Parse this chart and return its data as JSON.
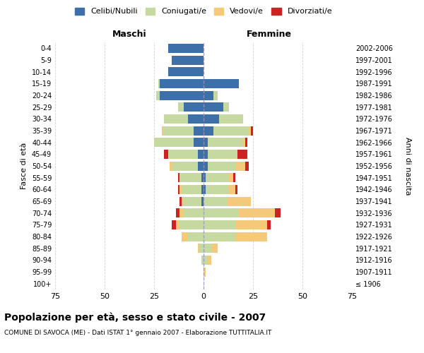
{
  "age_groups": [
    "100+",
    "95-99",
    "90-94",
    "85-89",
    "80-84",
    "75-79",
    "70-74",
    "65-69",
    "60-64",
    "55-59",
    "50-54",
    "45-49",
    "40-44",
    "35-39",
    "30-34",
    "25-29",
    "20-24",
    "15-19",
    "10-14",
    "5-9",
    "0-4"
  ],
  "birth_years": [
    "≤ 1906",
    "1907-1911",
    "1912-1916",
    "1917-1921",
    "1922-1926",
    "1927-1931",
    "1932-1936",
    "1937-1941",
    "1942-1946",
    "1947-1951",
    "1952-1956",
    "1957-1961",
    "1962-1966",
    "1967-1971",
    "1972-1976",
    "1977-1981",
    "1982-1986",
    "1987-1991",
    "1992-1996",
    "1997-2001",
    "2002-2006"
  ],
  "colors": {
    "celibi": "#3d6fa8",
    "coniugati": "#c5d9a0",
    "vedovi": "#f5c97a",
    "divorziati": "#cc2222"
  },
  "maschi": {
    "celibi": [
      0,
      0,
      0,
      0,
      0,
      0,
      0,
      1,
      1,
      1,
      3,
      3,
      5,
      5,
      8,
      10,
      22,
      22,
      18,
      16,
      18
    ],
    "coniugati": [
      0,
      0,
      1,
      2,
      8,
      12,
      10,
      9,
      10,
      11,
      13,
      15,
      20,
      15,
      12,
      3,
      2,
      1,
      0,
      0,
      0
    ],
    "vedovi": [
      0,
      0,
      0,
      1,
      3,
      2,
      2,
      1,
      1,
      0,
      1,
      0,
      0,
      1,
      0,
      0,
      0,
      0,
      0,
      0,
      0
    ],
    "divorziati": [
      0,
      0,
      0,
      0,
      0,
      2,
      2,
      1,
      1,
      1,
      0,
      2,
      0,
      0,
      0,
      0,
      0,
      0,
      0,
      0,
      0
    ]
  },
  "femmine": {
    "nubili": [
      0,
      0,
      0,
      0,
      0,
      0,
      0,
      0,
      1,
      1,
      2,
      2,
      2,
      5,
      8,
      10,
      5,
      18,
      0,
      0,
      0
    ],
    "coniugate": [
      0,
      0,
      2,
      4,
      16,
      16,
      18,
      12,
      12,
      12,
      14,
      15,
      18,
      18,
      12,
      3,
      2,
      0,
      0,
      0,
      0
    ],
    "vedove": [
      0,
      1,
      2,
      3,
      16,
      16,
      18,
      12,
      3,
      2,
      5,
      0,
      1,
      1,
      0,
      0,
      0,
      0,
      0,
      0,
      0
    ],
    "divorziate": [
      0,
      0,
      0,
      0,
      0,
      2,
      3,
      0,
      1,
      1,
      2,
      5,
      1,
      1,
      0,
      0,
      0,
      0,
      0,
      0,
      0
    ]
  },
  "xlim": 75,
  "title": "Popolazione per età, sesso e stato civile - 2007",
  "subtitle": "COMUNE DI SAVOCA (ME) - Dati ISTAT 1° gennaio 2007 - Elaborazione TUTTITALIA.IT",
  "xlabel_left": "Maschi",
  "xlabel_right": "Femmine",
  "ylabel_left": "Fasce di età",
  "ylabel_right": "Anni di nascita",
  "legend_labels": [
    "Celibi/Nubili",
    "Coniugati/e",
    "Vedovi/e",
    "Divorziati/e"
  ],
  "background_color": "#ffffff",
  "grid_color": "#cccccc"
}
